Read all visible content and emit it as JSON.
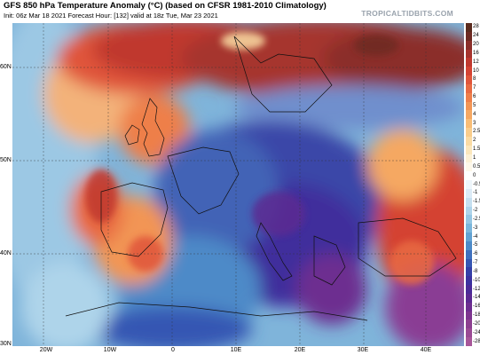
{
  "header": {
    "title": "GFS 850 hPa Temperature Anomaly (°C) (based on CFSR 1981-2010 Climatology)",
    "subtitle": "Init: 06z Mar 18 2021   Forecast Hour: [132]   valid at 18z Tue, Mar 23 2021",
    "brand": "TROPICALTIDBITS.COM"
  },
  "axes": {
    "lat_labels": [
      "60N",
      "50N",
      "40N",
      "30N"
    ],
    "lon_labels": [
      "20W",
      "10W",
      "0",
      "10E",
      "20E",
      "30E",
      "40E"
    ]
  },
  "colorbar": {
    "labels": [
      "28",
      "24",
      "20",
      "16",
      "12",
      "10",
      "8",
      "7",
      "6",
      "5",
      "4",
      "3",
      "2.5",
      "2",
      "1.5",
      "1",
      "0.5",
      "0",
      "-0.5",
      "-1",
      "-1.5",
      "-2",
      "-2.5",
      "-3",
      "-4",
      "-5",
      "-6",
      "-7",
      "-8",
      "-10",
      "-12",
      "-14",
      "-16",
      "-18",
      "-20",
      "-24",
      "-28"
    ],
    "colors": [
      "#5a2b1e",
      "#6e2a22",
      "#8b2f2a",
      "#a6342e",
      "#c0392f",
      "#d44333",
      "#e0553a",
      "#e86a42",
      "#ee7f4a",
      "#f29555",
      "#f5a862",
      "#f8bd76",
      "#f9cd8c",
      "#fadba3",
      "#fbe7bc",
      "#fcf1d6",
      "#fdf8ea",
      "#ffffff",
      "#eef6fb",
      "#dcebf6",
      "#c6e0f0",
      "#aed4ea",
      "#95c6e3",
      "#7bb6db",
      "#62a2d2",
      "#4d8ac8",
      "#3f70be",
      "#3657b3",
      "#3440a8",
      "#3b33a0",
      "#4a2c98",
      "#5b2a92",
      "#6d2e90",
      "#7d358f",
      "#8c3f90",
      "#9a4a94",
      "#a75699"
    ]
  }
}
